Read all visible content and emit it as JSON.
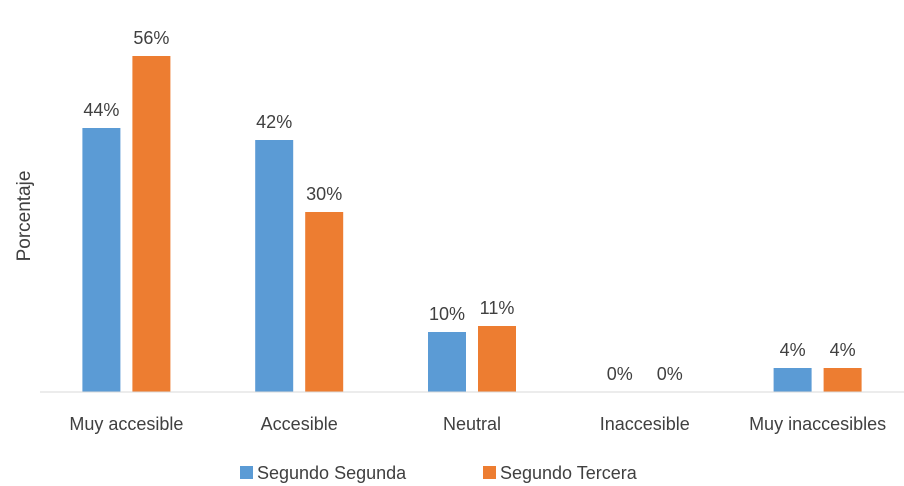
{
  "chart_data": {
    "type": "bar",
    "title": "",
    "xlabel": "",
    "ylabel": "Porcentaje",
    "categories": [
      "Muy accesible",
      "Accesible",
      "Neutral",
      "Inaccesible",
      "Muy inaccesibles"
    ],
    "series": [
      {
        "name": "Segundo Segunda",
        "values": [
          44,
          42,
          10,
          0,
          4
        ],
        "labels": [
          "44%",
          "42%",
          "10%",
          "0%",
          "4%"
        ],
        "color": "#5B9BD5"
      },
      {
        "name": "Segundo Tercera",
        "values": [
          56,
          30,
          11,
          0,
          4
        ],
        "labels": [
          "56%",
          "30%",
          "11%",
          "0%",
          "4%"
        ],
        "color": "#ED7D31"
      }
    ],
    "ylim": [
      0,
      60
    ],
    "grid": false,
    "legend": "bottom"
  }
}
